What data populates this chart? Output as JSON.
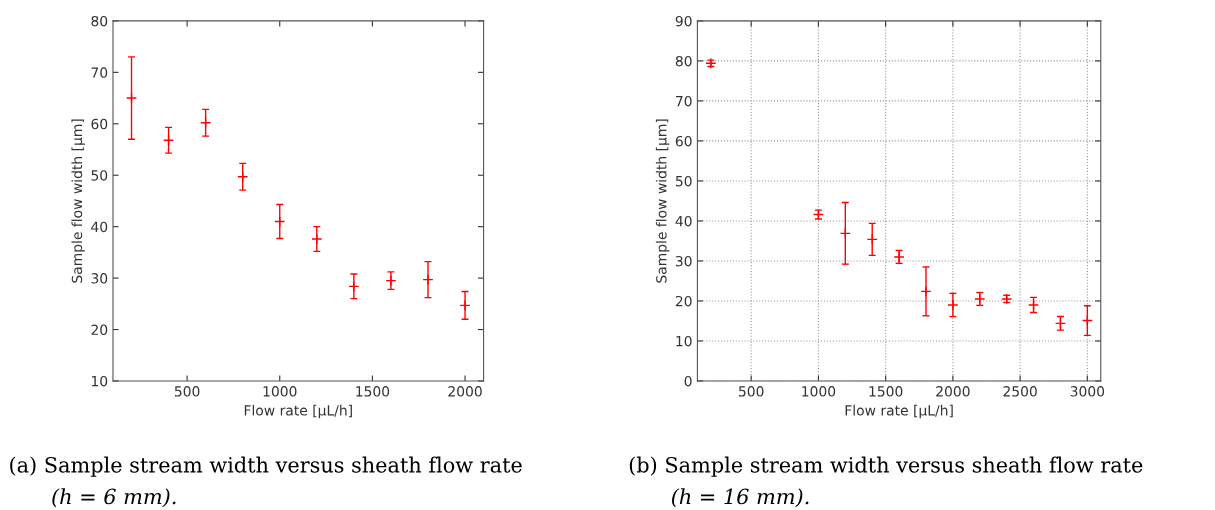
{
  "chart_data": [
    {
      "type": "scatter",
      "xlabel": "Flow rate [µL/h]",
      "ylabel": "Sample flow width [µm]",
      "x": [
        200,
        400,
        600,
        800,
        1000,
        1200,
        1400,
        1600,
        1800,
        2000
      ],
      "series": [
        {
          "color": "#ff0000",
          "values": [
            65,
            56.8,
            60.2,
            49.7,
            41.0,
            37.6,
            28.4,
            29.5,
            29.7,
            24.7
          ],
          "errors": [
            8.0,
            2.5,
            2.6,
            2.6,
            3.3,
            2.4,
            2.4,
            1.7,
            3.5,
            2.7
          ]
        }
      ],
      "xlim": [
        100,
        2100
      ],
      "xticks": [
        500,
        1000,
        1500,
        2000
      ],
      "ylim": [
        10,
        80
      ],
      "yticks": [
        10,
        20,
        30,
        40,
        50,
        60,
        70,
        80
      ],
      "grid": false,
      "legend": false,
      "marker": "cross",
      "annotations": [
        "(a) Sample stream width versus sheath flow rate",
        "(h = 6 mm)."
      ]
    },
    {
      "type": "scatter",
      "xlabel": "Flow rate [µL/h]",
      "ylabel": "Sample flow width [µm]",
      "x": [
        200,
        1000,
        1200,
        1400,
        1600,
        1800,
        2000,
        2200,
        2400,
        2600,
        2800,
        3000
      ],
      "series": [
        {
          "color": "#ff0000",
          "values": [
            79.4,
            41.6,
            36.9,
            35.4,
            31.0,
            22.4,
            19.0,
            20.5,
            20.5,
            19.0,
            14.4,
            15.1
          ],
          "errors": [
            0.8,
            1.1,
            7.7,
            4.0,
            1.6,
            6.1,
            2.9,
            1.6,
            0.9,
            1.9,
            1.7,
            3.7
          ]
        }
      ],
      "xlim": [
        100,
        3100
      ],
      "xticks": [
        500,
        1000,
        1500,
        2000,
        2500,
        3000
      ],
      "ylim": [
        0,
        90
      ],
      "yticks": [
        0,
        10,
        20,
        30,
        40,
        50,
        60,
        70,
        80,
        90
      ],
      "grid": true,
      "legend": false,
      "marker": "cross",
      "annotations": [
        "(b) Sample stream width versus sheath flow rate",
        "(h = 16 mm)."
      ]
    }
  ]
}
